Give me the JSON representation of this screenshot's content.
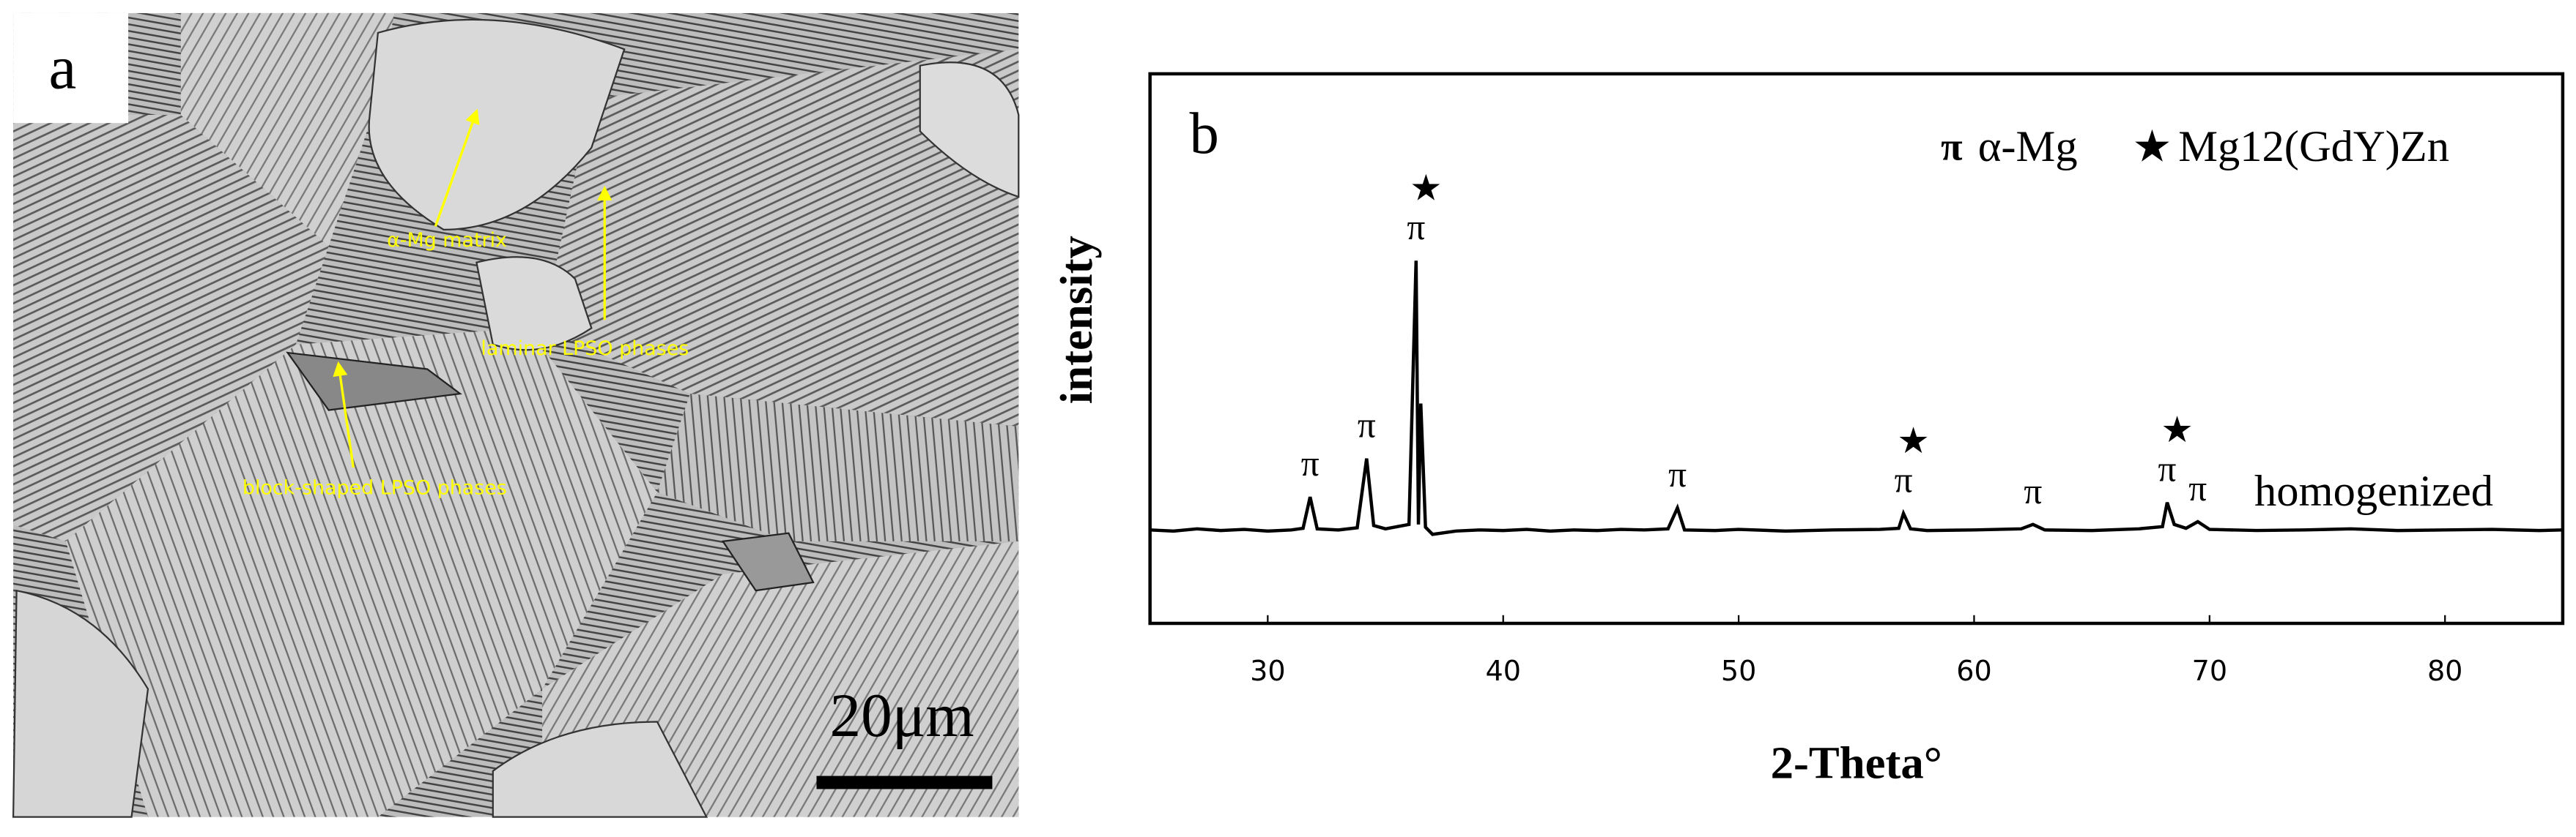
{
  "panel_a": {
    "label": "a",
    "annotations": [
      "α-Mg matrix",
      "laminar LPSO phases",
      "block-shaped LPSO phases"
    ],
    "scale_bar": "20μm"
  },
  "chart_data": {
    "type": "line",
    "panel_label": "b",
    "x_label": "2-Theta°",
    "y_label": "intensity",
    "x": [
      25,
      26,
      27,
      28,
      29,
      30,
      31,
      31.5,
      31.8,
      32.1,
      33,
      33.8,
      34.2,
      34.5,
      35,
      35.5,
      36,
      36.3,
      36.4,
      36.5,
      36.7,
      37,
      38,
      39,
      40,
      41,
      42,
      43,
      44,
      45,
      46,
      47,
      47.4,
      47.7,
      49,
      50,
      52,
      54,
      56,
      56.8,
      57,
      57.3,
      58,
      60,
      62,
      62.5,
      63,
      65,
      67,
      68,
      68.2,
      68.5,
      69,
      69.5,
      70,
      72,
      74,
      76,
      78,
      80,
      82,
      84,
      85
    ],
    "series": [
      {
        "name": "homogenized",
        "color": "#000000",
        "values": [
          17,
          16.8,
          17.2,
          16.9,
          17.1,
          16.8,
          17,
          17.3,
          23,
          17.2,
          17,
          17.4,
          30,
          17.8,
          17.2,
          17.6,
          18,
          66,
          18,
          40,
          17.5,
          16.2,
          16.8,
          17,
          16.9,
          17.1,
          16.8,
          17,
          16.9,
          17.1,
          17,
          17.2,
          21,
          17,
          16.9,
          17.1,
          16.8,
          17,
          17.1,
          17.3,
          20,
          17.2,
          16.9,
          17,
          17.2,
          18,
          17,
          16.9,
          17.2,
          17.6,
          22,
          18,
          17.3,
          18.5,
          17.1,
          16.9,
          17,
          17.2,
          16.9,
          17,
          17.1,
          16.9,
          17
        ]
      }
    ],
    "xlim": [
      25,
      85
    ],
    "xticks": [
      30,
      40,
      50,
      60,
      70,
      80
    ],
    "ylim": [
      0,
      100
    ],
    "peak_markers": [
      {
        "x": 31.8,
        "labels": [
          "π"
        ]
      },
      {
        "x": 34.2,
        "labels": [
          "π"
        ]
      },
      {
        "x": 36.3,
        "labels": [
          "π",
          "★"
        ]
      },
      {
        "x": 47.4,
        "labels": [
          "π"
        ]
      },
      {
        "x": 57,
        "labels": [
          "π",
          "★"
        ]
      },
      {
        "x": 62.5,
        "labels": [
          "π"
        ]
      },
      {
        "x": 68.2,
        "labels": [
          "π",
          "★"
        ]
      },
      {
        "x": 69.5,
        "labels": [
          "π"
        ]
      }
    ],
    "legend": [
      {
        "symbol": "π",
        "text": "α-Mg"
      },
      {
        "symbol": "★",
        "text": "Mg12(GdY)Zn"
      }
    ]
  }
}
